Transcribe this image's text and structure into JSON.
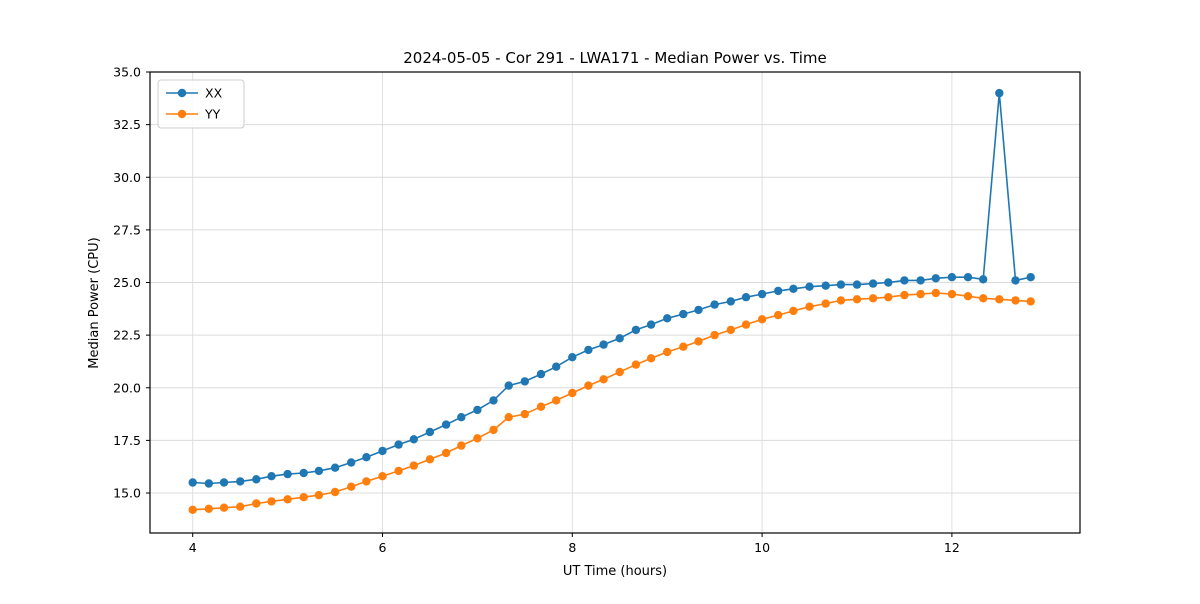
{
  "chart_data": {
    "type": "line",
    "title": "2024-05-05 - Cor 291 - LWA171 - Median Power vs. Time",
    "xlabel": "UT Time (hours)",
    "ylabel": "Median Power (CPU)",
    "xlim": [
      3.55,
      13.35
    ],
    "ylim": [
      13.1,
      35.0
    ],
    "xticks": [
      4,
      6,
      8,
      10,
      12
    ],
    "yticks": [
      15.0,
      17.5,
      20.0,
      22.5,
      25.0,
      27.5,
      30.0,
      32.5,
      35.0
    ],
    "grid": true,
    "legend_position": "upper left",
    "x": [
      4.0,
      4.17,
      4.33,
      4.5,
      4.67,
      4.83,
      5.0,
      5.17,
      5.33,
      5.5,
      5.67,
      5.83,
      6.0,
      6.17,
      6.33,
      6.5,
      6.67,
      6.83,
      7.0,
      7.17,
      7.33,
      7.5,
      7.67,
      7.83,
      8.0,
      8.17,
      8.33,
      8.5,
      8.67,
      8.83,
      9.0,
      9.17,
      9.33,
      9.5,
      9.67,
      9.83,
      10.0,
      10.17,
      10.33,
      10.5,
      10.67,
      10.83,
      11.0,
      11.17,
      11.33,
      11.5,
      11.67,
      11.83,
      12.0,
      12.17,
      12.33,
      12.5,
      12.67,
      12.83
    ],
    "series": [
      {
        "name": "XX",
        "color": "#1f77b4",
        "values": [
          15.5,
          15.45,
          15.5,
          15.55,
          15.65,
          15.8,
          15.9,
          15.95,
          16.05,
          16.2,
          16.45,
          16.7,
          17.0,
          17.3,
          17.55,
          17.9,
          18.25,
          18.6,
          18.95,
          19.4,
          20.1,
          20.3,
          20.65,
          21.0,
          21.45,
          21.8,
          22.05,
          22.35,
          22.75,
          23.0,
          23.3,
          23.5,
          23.7,
          23.95,
          24.1,
          24.3,
          24.45,
          24.6,
          24.7,
          24.8,
          24.85,
          24.9,
          24.9,
          24.95,
          25.0,
          25.1,
          25.1,
          25.2,
          25.25,
          25.25,
          25.15,
          34.0,
          25.1,
          25.25
        ]
      },
      {
        "name": "YY",
        "color": "#ff7f0e",
        "values": [
          14.2,
          14.25,
          14.3,
          14.35,
          14.5,
          14.6,
          14.7,
          14.8,
          14.9,
          15.05,
          15.3,
          15.55,
          15.8,
          16.05,
          16.3,
          16.6,
          16.9,
          17.25,
          17.6,
          18.0,
          18.6,
          18.75,
          19.1,
          19.4,
          19.75,
          20.1,
          20.4,
          20.75,
          21.1,
          21.4,
          21.7,
          21.95,
          22.2,
          22.5,
          22.75,
          23.0,
          23.25,
          23.45,
          23.65,
          23.85,
          24.0,
          24.15,
          24.2,
          24.25,
          24.3,
          24.4,
          24.45,
          24.5,
          24.45,
          24.35,
          24.25,
          24.2,
          24.15,
          24.1
        ]
      }
    ],
    "style": {
      "grid_color": "#dcdcdc",
      "spine_color": "#000000",
      "background": "#ffffff",
      "marker_radius": 4.2,
      "line_width": 1.6
    }
  }
}
